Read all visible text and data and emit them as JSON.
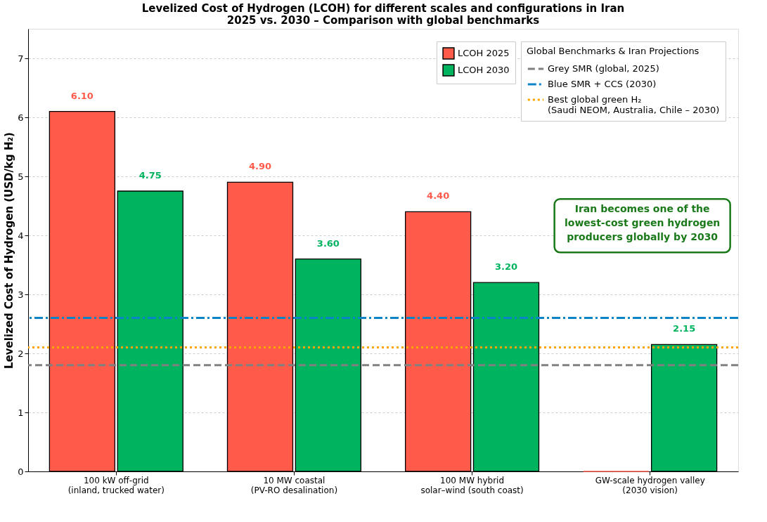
{
  "chart_data": {
    "type": "bar",
    "title": "Levelized Cost of Hydrogen (LCOH) for different scales and configurations in Iran\n2025 vs. 2030 – Comparison with global benchmarks",
    "ylabel": "Levelized Cost of Hydrogen (USD/kg H₂)",
    "categories": [
      "100 kW off-grid\n(inland, trucked water)",
      "10 MW coastal\n(PV-RO desalination)",
      "100 MW hybrid\nsolar–wind (south coast)",
      "GW-scale hydrogen valley\n(2030 vision)"
    ],
    "series": [
      {
        "name": "LCOH 2025",
        "color": "#ff5a4a",
        "values": [
          6.1,
          4.9,
          4.4,
          0
        ],
        "value_labels": [
          "6.10",
          "4.90",
          "4.40",
          null
        ]
      },
      {
        "name": "LCOH 2030",
        "color": "#00b35f",
        "values": [
          4.75,
          3.6,
          3.2,
          2.15
        ],
        "value_labels": [
          "4.75",
          "3.60",
          "3.20",
          "2.15"
        ]
      }
    ],
    "ylim": [
      0,
      7.5
    ],
    "yticks": [
      0,
      1,
      2,
      3,
      4,
      5,
      6,
      7
    ],
    "grid": "y",
    "legend": "top right",
    "legend_title": "Global Benchmarks & Iran Projections",
    "ref_lines": [
      {
        "axis": "y",
        "value": 1.8,
        "label": "Grey SMR (global, 2025)",
        "color": "#808080",
        "line_style": "dashed"
      },
      {
        "axis": "y",
        "value": 2.6,
        "label": "Blue SMR + CCS (2030)",
        "color": "#0a84c6",
        "line_style": "dashdot"
      },
      {
        "axis": "y",
        "value": 2.1,
        "label": "Best global green H₂\n(Saudi NEOM, Australia, Chile – 2030)",
        "color": "#ffa500",
        "line_style": "dotted"
      }
    ],
    "annotations": [
      "Iran becomes one of the\nlowest-cost green hydrogen\nproducers globally by 2030"
    ]
  }
}
